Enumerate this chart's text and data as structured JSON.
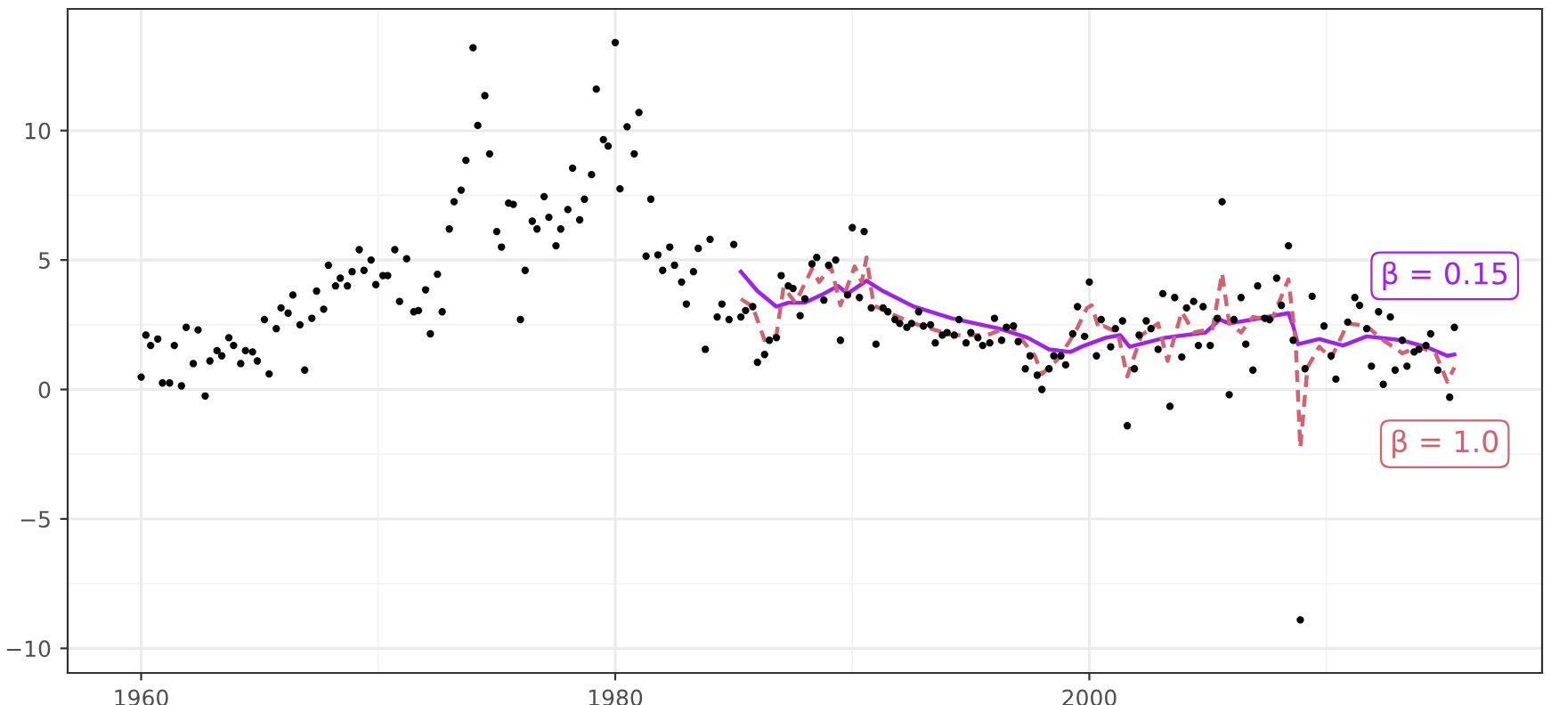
{
  "chart_data": {
    "type": "scatter",
    "xlim": [
      1956.9,
      2019.1
    ],
    "ylim": [
      -10.95,
      14.7
    ],
    "xticks": [
      1960,
      1980,
      2000
    ],
    "yticks": [
      -10,
      -5,
      0,
      5,
      10
    ],
    "grid": true,
    "legend": false,
    "series": [
      {
        "marker": "circle",
        "color": "#000000",
        "x": [
          1960.0,
          1960.2,
          1960.4,
          1960.7,
          1960.9,
          1961.2,
          1961.4,
          1961.7,
          1961.9,
          1962.2,
          1962.4,
          1962.7,
          1962.9,
          1963.2,
          1963.4,
          1963.7,
          1963.9,
          1964.2,
          1964.4,
          1964.7,
          1964.9,
          1965.2,
          1965.4,
          1965.7,
          1965.9,
          1966.2,
          1966.4,
          1966.7,
          1966.9,
          1967.2,
          1967.4,
          1967.7,
          1967.9,
          1968.2,
          1968.4,
          1968.7,
          1968.9,
          1969.2,
          1969.4,
          1969.7,
          1969.9,
          1970.2,
          1970.4,
          1970.7,
          1970.9,
          1971.2,
          1971.5,
          1971.7,
          1972.0,
          1972.2,
          1972.5,
          1972.7,
          1973.0,
          1973.2,
          1973.5,
          1973.7,
          1974.0,
          1974.2,
          1974.5,
          1974.7,
          1975.0,
          1975.2,
          1975.5,
          1975.7,
          1976.0,
          1976.2,
          1976.5,
          1976.7,
          1977.0,
          1977.2,
          1977.5,
          1977.7,
          1978.0,
          1978.2,
          1978.5,
          1978.7,
          1979.0,
          1979.2,
          1979.5,
          1979.7,
          1980.0,
          1980.2,
          1980.5,
          1980.8,
          1981.0,
          1981.3,
          1981.5,
          1981.8,
          1982.0,
          1982.3,
          1982.5,
          1982.8,
          1983.0,
          1983.3,
          1983.5,
          1983.8,
          1984.0,
          1984.3,
          1984.5,
          1984.8,
          1985.0,
          1985.3,
          1985.5,
          1985.8,
          1986.0,
          1986.3,
          1986.5,
          1986.8,
          1987.0,
          1987.3,
          1987.5,
          1987.8,
          1988.0,
          1988.3,
          1988.5,
          1988.8,
          1989.0,
          1989.3,
          1989.5,
          1989.8,
          1990.0,
          1990.3,
          1990.5,
          1990.8,
          1991.0,
          1991.3,
          1991.5,
          1991.8,
          1992.0,
          1992.3,
          1992.5,
          1992.8,
          1993.0,
          1993.3,
          1993.5,
          1993.8,
          1994.0,
          1994.3,
          1994.5,
          1994.8,
          1995.0,
          1995.3,
          1995.5,
          1995.8,
          1996.0,
          1996.3,
          1996.5,
          1996.8,
          1997.0,
          1997.3,
          1997.5,
          1997.8,
          1998.0,
          1998.3,
          1998.5,
          1998.8,
          1999.0,
          1999.3,
          1999.5,
          1999.8,
          2000.0,
          2000.3,
          2000.5,
          2000.9,
          2001.1,
          2001.4,
          2001.6,
          2001.9,
          2002.1,
          2002.4,
          2002.6,
          2002.9,
          2003.1,
          2003.4,
          2003.6,
          2003.9,
          2004.1,
          2004.4,
          2004.6,
          2004.8,
          2005.1,
          2005.4,
          2005.6,
          2005.9,
          2006.1,
          2006.4,
          2006.6,
          2006.9,
          2007.1,
          2007.4,
          2007.6,
          2007.9,
          2008.1,
          2008.4,
          2008.6,
          2008.9,
          2009.1,
          2009.4,
          2009.9,
          2010.2,
          2010.4,
          2010.9,
          2011.2,
          2011.4,
          2011.7,
          2011.9,
          2012.2,
          2012.4,
          2012.7,
          2012.9,
          2013.2,
          2013.4,
          2013.7,
          2013.9,
          2014.2,
          2014.4,
          2014.7,
          2015.2,
          2015.4
        ],
        "values": [
          0.48,
          2.1,
          1.7,
          1.95,
          0.25,
          0.25,
          1.7,
          0.14,
          2.4,
          1.0,
          2.3,
          -0.25,
          1.1,
          1.5,
          1.3,
          2.0,
          1.7,
          1.0,
          1.5,
          1.45,
          1.1,
          2.7,
          0.6,
          2.35,
          3.15,
          2.95,
          3.65,
          2.5,
          0.75,
          2.75,
          3.8,
          3.1,
          4.8,
          4.0,
          4.3,
          4.0,
          4.55,
          5.4,
          4.6,
          5.0,
          4.05,
          4.4,
          4.4,
          5.4,
          3.4,
          5.05,
          3.0,
          3.05,
          3.85,
          2.15,
          4.45,
          3.0,
          6.2,
          7.25,
          7.7,
          8.85,
          13.2,
          10.2,
          11.35,
          9.1,
          6.1,
          5.5,
          7.2,
          7.15,
          2.7,
          4.6,
          6.5,
          6.2,
          7.45,
          6.65,
          5.55,
          6.2,
          6.95,
          8.55,
          6.55,
          7.35,
          8.3,
          11.6,
          9.65,
          9.4,
          13.4,
          7.75,
          10.15,
          9.1,
          10.7,
          5.15,
          7.35,
          5.2,
          4.6,
          5.5,
          4.8,
          4.15,
          3.3,
          4.55,
          5.45,
          1.55,
          5.8,
          2.8,
          3.3,
          2.7,
          5.6,
          2.8,
          3.05,
          3.2,
          1.05,
          1.35,
          1.9,
          2.0,
          4.4,
          4.0,
          3.9,
          2.85,
          3.5,
          4.85,
          5.1,
          3.45,
          4.8,
          5.0,
          1.9,
          3.65,
          6.25,
          3.55,
          6.1,
          3.15,
          1.75,
          3.15,
          3.0,
          2.7,
          2.55,
          2.4,
          2.55,
          3.0,
          2.45,
          2.5,
          1.8,
          2.1,
          2.2,
          2.1,
          2.7,
          1.8,
          2.2,
          2.0,
          1.7,
          1.8,
          2.75,
          1.9,
          2.4,
          2.45,
          1.85,
          0.8,
          1.3,
          0.55,
          0.0,
          0.8,
          1.3,
          1.3,
          0.95,
          2.15,
          3.2,
          2.05,
          4.15,
          1.3,
          2.7,
          1.65,
          2.35,
          2.65,
          -1.4,
          0.8,
          2.1,
          2.65,
          2.35,
          1.55,
          3.7,
          -0.65,
          3.55,
          1.25,
          3.15,
          3.4,
          1.7,
          3.2,
          1.7,
          2.75,
          7.25,
          -0.2,
          2.7,
          3.55,
          1.75,
          0.75,
          4.0,
          2.75,
          2.7,
          4.3,
          3.25,
          5.55,
          1.9,
          -8.9,
          0.8,
          3.6,
          2.45,
          1.3,
          0.4,
          2.6,
          3.55,
          3.25,
          2.35,
          0.9,
          3.0,
          0.2,
          2.8,
          0.75,
          1.9,
          0.9,
          1.45,
          1.55,
          1.7,
          2.15,
          0.75,
          -0.3,
          2.4
        ]
      },
      {
        "type": "line",
        "color": "#a020f0",
        "line_style": "solid",
        "marker": "none",
        "x": [
          1985.3,
          1986.0,
          1986.8,
          1987.3,
          1988.0,
          1988.8,
          1989.4,
          1989.8,
          1990.6,
          1991.3,
          1992.6,
          1994.2,
          1996.2,
          1997.4,
          1998.3,
          1999.2,
          1999.8,
          2000.7,
          2001.3,
          2001.7,
          2003.2,
          2004.9,
          2005.5,
          2005.9,
          2007.2,
          2008.4,
          2008.6,
          2008.8,
          2009.7,
          2010.7,
          2011.7,
          2013.2,
          2014.2,
          2015.1,
          2015.4
        ],
        "values": [
          4.55,
          3.8,
          3.2,
          3.35,
          3.35,
          3.7,
          4.0,
          3.7,
          4.2,
          3.8,
          3.2,
          2.75,
          2.35,
          2.0,
          1.55,
          1.45,
          1.7,
          2.0,
          2.1,
          1.65,
          2.0,
          2.2,
          2.7,
          2.55,
          2.75,
          2.95,
          2.45,
          1.75,
          1.95,
          1.7,
          2.05,
          1.9,
          1.65,
          1.3,
          1.35
        ]
      },
      {
        "type": "line",
        "color": "#d5606e",
        "line_style": "dashed",
        "marker": "none",
        "x": [
          1985.3,
          1985.8,
          1986.3,
          1986.8,
          1987.1,
          1987.6,
          1988.3,
          1988.6,
          1989.1,
          1989.5,
          1990.1,
          1990.4,
          1990.6,
          1990.9,
          1991.7,
          1992.6,
          1994.2,
          1995.7,
          1996.7,
          1997.7,
          1998.0,
          1998.7,
          1999.4,
          1999.9,
          2000.1,
          2000.4,
          2000.6,
          2001.2,
          2001.6,
          2002.2,
          2002.9,
          2003.3,
          2003.9,
          2004.4,
          2005.2,
          2005.6,
          2005.9,
          2006.4,
          2006.9,
          2007.7,
          2008.4,
          2008.7,
          2008.9,
          2009.2,
          2009.7,
          2010.2,
          2010.9,
          2011.7,
          2012.4,
          2013.2,
          2013.9,
          2014.6,
          2015.1,
          2015.4
        ],
        "values": [
          3.5,
          3.2,
          1.9,
          2.1,
          3.95,
          3.35,
          4.65,
          4.15,
          4.75,
          3.25,
          4.75,
          4.15,
          5.1,
          3.25,
          2.9,
          2.55,
          2.1,
          2.1,
          2.45,
          1.3,
          0.6,
          1.2,
          2.2,
          3.15,
          3.25,
          2.35,
          2.45,
          2.2,
          0.5,
          2.1,
          2.55,
          1.1,
          3.0,
          2.2,
          2.35,
          4.5,
          2.55,
          2.2,
          2.8,
          2.7,
          4.25,
          1.9,
          -2.25,
          0.85,
          1.65,
          1.2,
          2.55,
          2.45,
          1.9,
          1.4,
          1.65,
          1.4,
          0.3,
          0.85
        ]
      }
    ],
    "annotations": [
      "β = 0.15",
      "β = 1.0"
    ]
  }
}
